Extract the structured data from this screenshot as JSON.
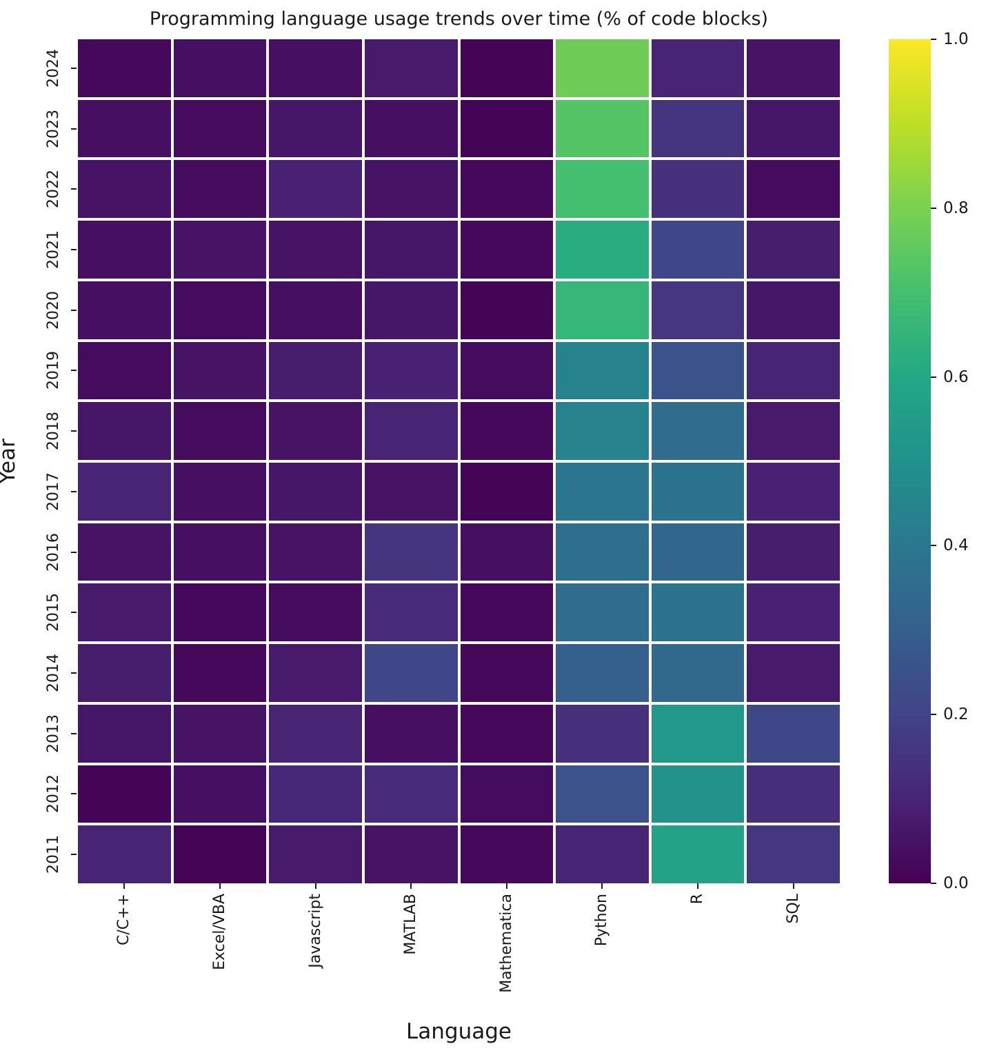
{
  "title": "Programming language usage trends over time (% of code blocks)",
  "xlabel": "Language",
  "ylabel": "Year",
  "colors": {
    "background": "#ffffff",
    "grid_line": "#ffffff",
    "text": "#1a1a1a",
    "viridis_stops": [
      "#440154",
      "#482475",
      "#414487",
      "#355f8d",
      "#2a788e",
      "#21918c",
      "#22a884",
      "#44bf70",
      "#7ad151",
      "#bddf26",
      "#fde725"
    ]
  },
  "chart_data": {
    "type": "heatmap",
    "title": "Programming language usage trends over time (% of code blocks)",
    "xlabel": "Language",
    "ylabel": "Year",
    "x_categories": [
      "C/C++",
      "Excel/VBA",
      "Javascript",
      "MATLAB",
      "Mathematica",
      "Python",
      "R",
      "SQL"
    ],
    "y_categories": [
      "2024",
      "2023",
      "2022",
      "2021",
      "2020",
      "2019",
      "2018",
      "2017",
      "2016",
      "2015",
      "2014",
      "2013",
      "2012",
      "2011"
    ],
    "matrix": [
      [
        0.02,
        0.04,
        0.04,
        0.07,
        0.01,
        0.78,
        0.1,
        0.05
      ],
      [
        0.04,
        0.03,
        0.06,
        0.04,
        0.01,
        0.73,
        0.15,
        0.06
      ],
      [
        0.05,
        0.03,
        0.09,
        0.05,
        0.02,
        0.7,
        0.14,
        0.03
      ],
      [
        0.04,
        0.05,
        0.05,
        0.06,
        0.02,
        0.62,
        0.21,
        0.08
      ],
      [
        0.04,
        0.03,
        0.04,
        0.06,
        0.01,
        0.66,
        0.16,
        0.06
      ],
      [
        0.03,
        0.05,
        0.08,
        0.09,
        0.03,
        0.44,
        0.26,
        0.1
      ],
      [
        0.06,
        0.03,
        0.05,
        0.1,
        0.02,
        0.44,
        0.35,
        0.07
      ],
      [
        0.1,
        0.04,
        0.06,
        0.05,
        0.01,
        0.39,
        0.38,
        0.09
      ],
      [
        0.05,
        0.04,
        0.05,
        0.15,
        0.04,
        0.36,
        0.33,
        0.08
      ],
      [
        0.07,
        0.02,
        0.03,
        0.12,
        0.02,
        0.35,
        0.38,
        0.09
      ],
      [
        0.08,
        0.02,
        0.07,
        0.21,
        0.02,
        0.3,
        0.34,
        0.07
      ],
      [
        0.06,
        0.05,
        0.1,
        0.04,
        0.02,
        0.14,
        0.53,
        0.21
      ],
      [
        0.01,
        0.04,
        0.11,
        0.12,
        0.03,
        0.25,
        0.51,
        0.13
      ],
      [
        0.1,
        0.01,
        0.07,
        0.05,
        0.02,
        0.1,
        0.58,
        0.16
      ]
    ],
    "colormap": "viridis",
    "vmin": 0.0,
    "vmax": 1.0,
    "colorbar_tick_labels": [
      "1.0",
      "0.8",
      "0.6",
      "0.4",
      "0.2",
      "0.0"
    ],
    "colorbar_tick_values": [
      1.0,
      0.8,
      0.6,
      0.4,
      0.2,
      0.0
    ],
    "grid": true,
    "legend_position": "right-colorbar"
  }
}
